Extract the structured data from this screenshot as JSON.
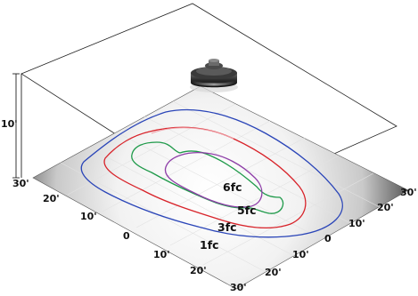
{
  "diagram": {
    "ceiling_height_label": "10'",
    "left_axis_labels": [
      "30'",
      "20'",
      "10'",
      "0",
      "10'",
      "20'",
      "30'"
    ],
    "right_axis_labels": [
      "30'",
      "20'",
      "10'",
      "0",
      "10'",
      "20'",
      "30'"
    ],
    "contours": [
      {
        "label": "6fc",
        "color": "#8e3ea8"
      },
      {
        "label": "5fc",
        "color": "#1f9a4a"
      },
      {
        "label": "3fc",
        "color": "#d8232a"
      },
      {
        "label": "1fc",
        "color": "#2a45b8"
      }
    ]
  }
}
